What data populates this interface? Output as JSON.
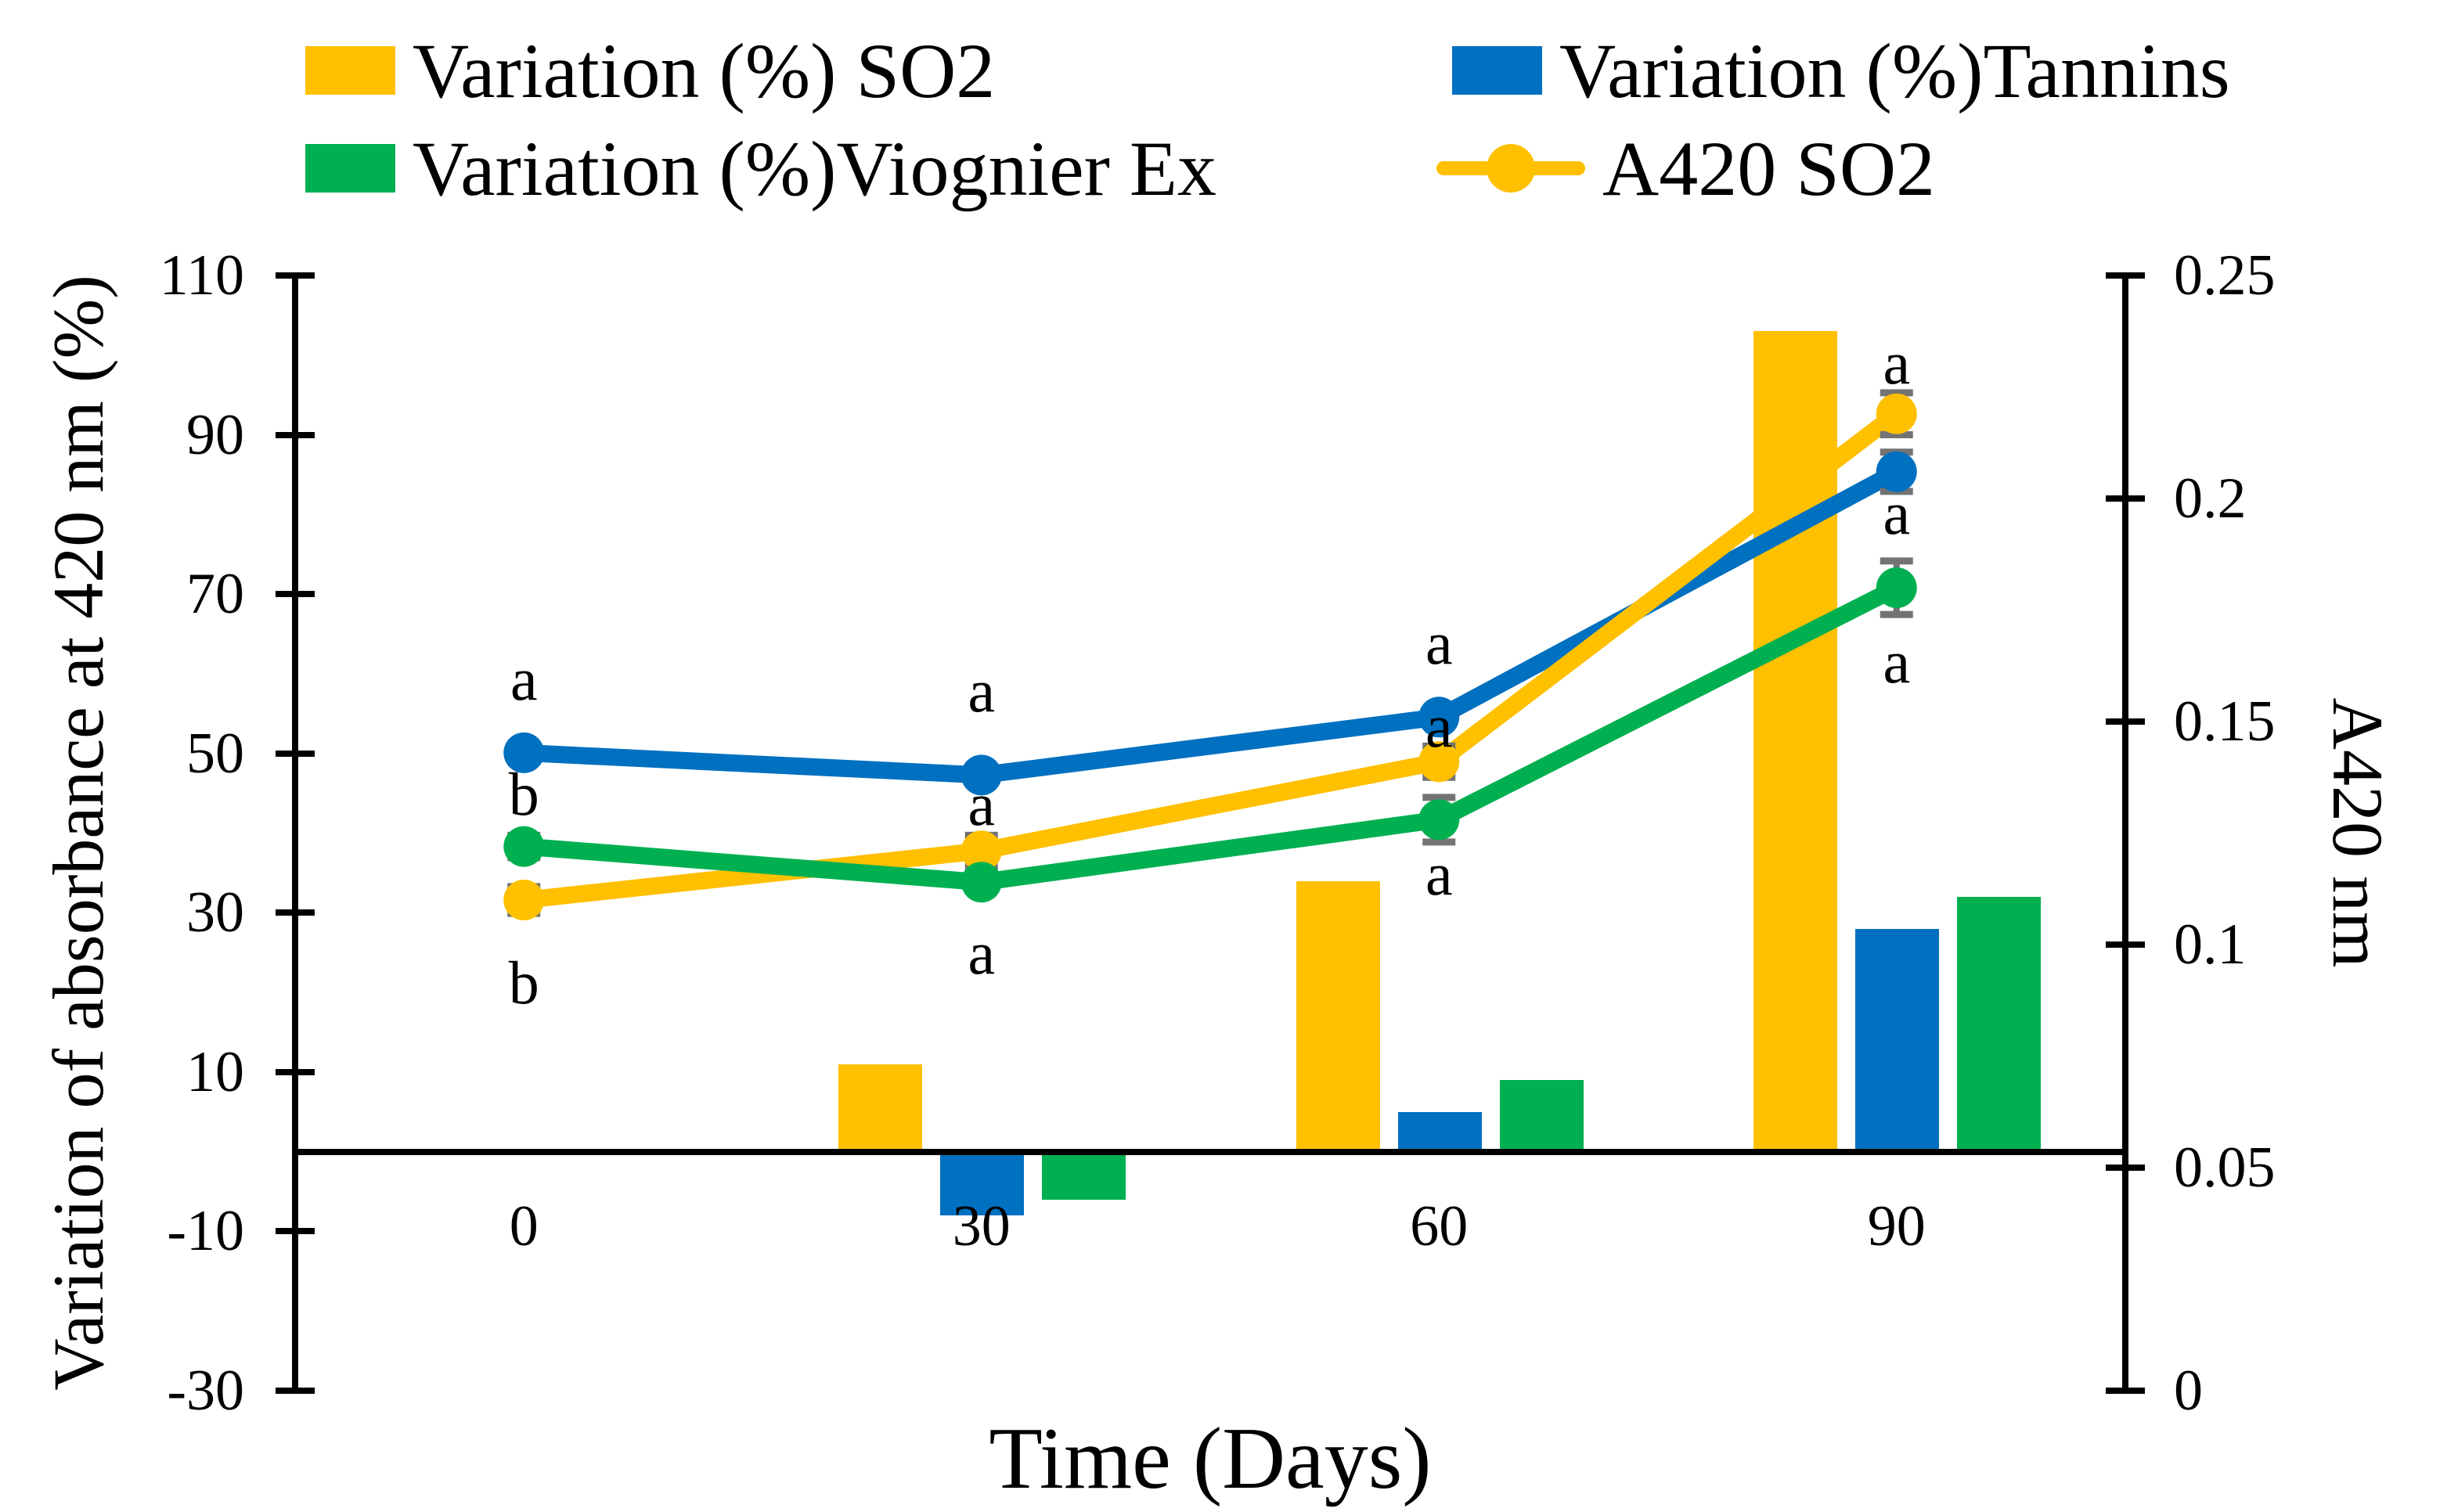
{
  "legend": {
    "items": [
      {
        "label": "Variation (%) SO2",
        "swatch": "rect",
        "series": "so2"
      },
      {
        "label": "Variation (%)Tannins",
        "swatch": "rect",
        "series": "tannins"
      },
      {
        "label": "Variation (%)Viognier Ex",
        "swatch": "rect",
        "series": "viognier"
      },
      {
        "label": "A420 SO2",
        "swatch": "line-marker",
        "series": "a420_so2"
      }
    ]
  },
  "chart_data": {
    "type": "combo bar+line, dual axis",
    "categories": [
      "0",
      "30",
      "60",
      "90"
    ],
    "x_axis_title": "Time (Days)",
    "left_axis": {
      "title": "Variation of absorbance at 420 nm (%)",
      "min": -30,
      "max": 110,
      "ticks": [
        "110",
        "90",
        "70",
        "50",
        "30",
        "10",
        "-10",
        "-30"
      ]
    },
    "right_axis": {
      "title": "A420 nm",
      "min": 0,
      "max": 0.25,
      "ticks": [
        "0.25",
        "0.2",
        "0.15",
        "0.1",
        "0.05",
        "0"
      ]
    },
    "bar_series": [
      {
        "id": "so2",
        "legend_label": "Variation (%) SO2",
        "color": "#FFC000",
        "axis": "left",
        "values": [
          0,
          11,
          34,
          103
        ]
      },
      {
        "id": "tannins",
        "legend_label": "Variation (%)Tannins",
        "color": "#0070C0",
        "axis": "left",
        "values": [
          0,
          -8,
          5,
          28
        ]
      },
      {
        "id": "viognier",
        "legend_label": "Variation (%)Viognier Ex",
        "color": "#00B050",
        "axis": "left",
        "values": [
          0,
          -6,
          9,
          32
        ]
      }
    ],
    "line_series": [
      {
        "id": "line_blue",
        "color": "#0070C0",
        "axis": "right",
        "values": [
          0.143,
          0.138,
          0.151,
          0.206
        ],
        "errors": [
          0,
          0,
          0,
          0.0044
        ]
      },
      {
        "id": "a420_so2",
        "legend_label": "A420 SO2",
        "color": "#FFC000",
        "axis": "right",
        "values": [
          0.11,
          0.121,
          0.141,
          0.219
        ],
        "errors": [
          0.003,
          0.0035,
          0.0035,
          0.0047
        ]
      },
      {
        "id": "line_green",
        "color": "#00B050",
        "axis": "right",
        "values": [
          0.122,
          0.114,
          0.128,
          0.18
        ],
        "errors": [
          0.0025,
          0,
          0.005,
          0.006
        ]
      }
    ],
    "significance_letters": [
      {
        "category": 0,
        "series": "line_blue",
        "letter": "a",
        "dy": -94
      },
      {
        "category": 0,
        "series": "line_green",
        "letter": "b",
        "dy": -67
      },
      {
        "category": 0,
        "series": "a420_so2",
        "letter": "b",
        "dy": 106
      },
      {
        "category": 1,
        "series": "line_blue",
        "letter": "a",
        "dy": -107
      },
      {
        "category": 1,
        "series": "a420_so2",
        "letter": "a",
        "dy": -59
      },
      {
        "category": 1,
        "series": "line_green",
        "letter": "a",
        "dy": 91
      },
      {
        "category": 2,
        "series": "line_blue",
        "letter": "a",
        "dy": -94
      },
      {
        "category": 2,
        "series": "a420_so2",
        "letter": "a",
        "dy": -45
      },
      {
        "category": 2,
        "series": "line_green",
        "letter": "a",
        "dy": 70
      },
      {
        "category": 3,
        "series": "a420_so2",
        "letter": "a",
        "dy": -65
      },
      {
        "category": 3,
        "series": "line_blue",
        "letter": "a",
        "dy": 53
      },
      {
        "category": 3,
        "series": "line_green",
        "letter": "a",
        "dy": 95
      }
    ],
    "error_bar_color": "#737373",
    "axis_color": "#000000"
  }
}
